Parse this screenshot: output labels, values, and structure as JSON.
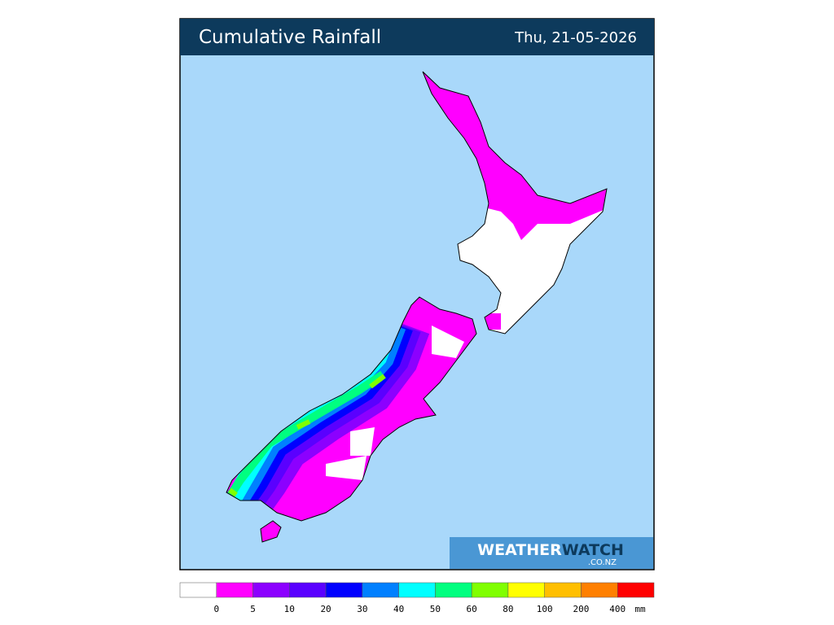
{
  "header": {
    "title": "Cumulative Rainfall",
    "date": "Thu, 21-05-2026"
  },
  "logo": {
    "brand_a": "WEATHER",
    "brand_b": "WATCH",
    "domain": ".CO.NZ"
  },
  "legend": {
    "colors": [
      "#ffffff",
      "#ff00ff",
      "#8c00ff",
      "#5a00ff",
      "#0000ff",
      "#0080ff",
      "#00ffff",
      "#00ff80",
      "#80ff00",
      "#ffff00",
      "#ffbf00",
      "#ff8000",
      "#ff0000"
    ],
    "labels": [
      0,
      5,
      10,
      20,
      30,
      40,
      50,
      60,
      80,
      100,
      200,
      400
    ],
    "unit": "mm"
  }
}
